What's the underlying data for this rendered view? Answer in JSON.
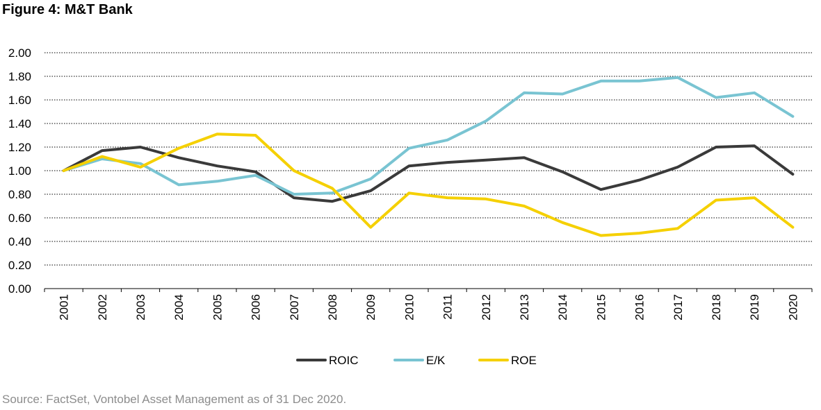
{
  "title": "Figure 4: M&T Bank",
  "source": "Source: FactSet, Vontobel Asset Management as of 31 Dec 2020.",
  "chart_data": {
    "type": "line",
    "title": "Figure 4: M&T Bank",
    "x": [
      "2001",
      "2002",
      "2003",
      "2004",
      "2005",
      "2006",
      "2007",
      "2008",
      "2009",
      "2010",
      "2011",
      "2012",
      "2013",
      "2014",
      "2015",
      "2016",
      "2017",
      "2018",
      "2019",
      "2020"
    ],
    "ylim": [
      0,
      2.0
    ],
    "yticks": [
      "0.00",
      "0.20",
      "0.40",
      "0.60",
      "0.80",
      "1.00",
      "1.20",
      "1.40",
      "1.60",
      "1.80",
      "2.00"
    ],
    "grid": "horizontal dotted",
    "legend_position": "bottom",
    "series": [
      {
        "name": "ROIC",
        "color": "#3a3a3a",
        "values": [
          1.0,
          1.17,
          1.2,
          1.11,
          1.04,
          0.99,
          0.77,
          0.74,
          0.83,
          1.04,
          1.07,
          1.09,
          1.11,
          0.99,
          0.84,
          0.92,
          1.03,
          1.2,
          1.21,
          0.97
        ]
      },
      {
        "name": "E/K",
        "color": "#79c4d2",
        "values": [
          1.0,
          1.1,
          1.06,
          0.88,
          0.91,
          0.96,
          0.8,
          0.81,
          0.93,
          1.19,
          1.26,
          1.42,
          1.66,
          1.65,
          1.76,
          1.76,
          1.79,
          1.62,
          1.66,
          1.46
        ]
      },
      {
        "name": "ROE",
        "color": "#f5d000",
        "values": [
          1.0,
          1.12,
          1.03,
          1.19,
          1.31,
          1.3,
          1.0,
          0.85,
          0.52,
          0.81,
          0.77,
          0.76,
          0.7,
          0.56,
          0.45,
          0.47,
          0.51,
          0.75,
          0.77,
          0.52
        ]
      }
    ]
  }
}
